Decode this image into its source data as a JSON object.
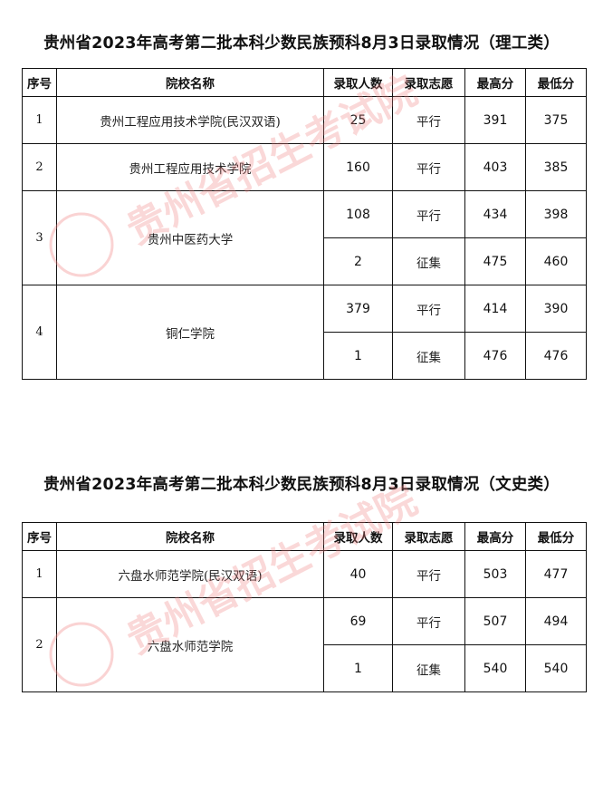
{
  "watermark": {
    "text": "贵州省招生考试院",
    "color": "#f08080"
  },
  "headers": [
    "序号",
    "院校名称",
    "录取人数",
    "录取志愿",
    "最高分",
    "最低分"
  ],
  "section1": {
    "title": "贵州省2023年高考第二批本科少数民族预科8月3日录取情况（理工类）",
    "rows": [
      {
        "no": "1",
        "name": "贵州工程应用技术学院(民汉双语)",
        "entries": [
          {
            "count": "25",
            "type": "平行",
            "max": "391",
            "min": "375"
          }
        ]
      },
      {
        "no": "2",
        "name": "贵州工程应用技术学院",
        "entries": [
          {
            "count": "160",
            "type": "平行",
            "max": "403",
            "min": "385"
          }
        ]
      },
      {
        "no": "3",
        "name": "贵州中医药大学",
        "entries": [
          {
            "count": "108",
            "type": "平行",
            "max": "434",
            "min": "398"
          },
          {
            "count": "2",
            "type": "征集",
            "max": "475",
            "min": "460"
          }
        ]
      },
      {
        "no": "4",
        "name": "铜仁学院",
        "entries": [
          {
            "count": "379",
            "type": "平行",
            "max": "414",
            "min": "390"
          },
          {
            "count": "1",
            "type": "征集",
            "max": "476",
            "min": "476"
          }
        ]
      }
    ]
  },
  "section2": {
    "title": "贵州省2023年高考第二批本科少数民族预科8月3日录取情况（文史类）",
    "rows": [
      {
        "no": "1",
        "name": "六盘水师范学院(民汉双语)",
        "entries": [
          {
            "count": "40",
            "type": "平行",
            "max": "503",
            "min": "477"
          }
        ]
      },
      {
        "no": "2",
        "name": "六盘水师范学院",
        "entries": [
          {
            "count": "69",
            "type": "平行",
            "max": "507",
            "min": "494"
          },
          {
            "count": "1",
            "type": "征集",
            "max": "540",
            "min": "540"
          }
        ]
      }
    ]
  }
}
